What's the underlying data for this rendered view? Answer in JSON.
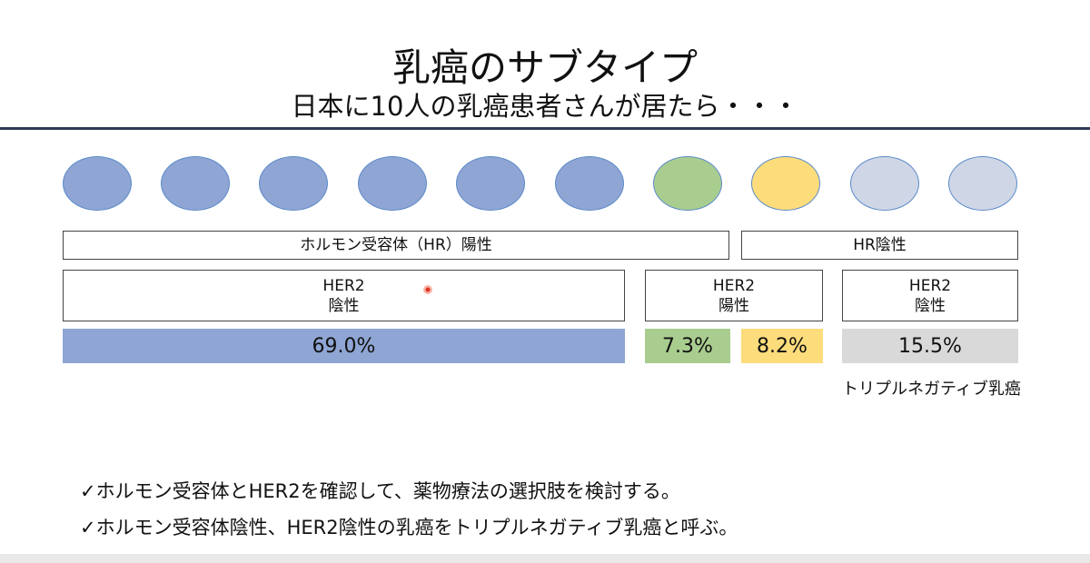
{
  "slide": {
    "title": "乳癌のサブタイプ",
    "subtitle": "日本に10人の乳癌患者さんが居たら・・・"
  },
  "people": [
    {
      "group": "hr-pos-her2-neg",
      "color": "#8fa5d4"
    },
    {
      "group": "hr-pos-her2-neg",
      "color": "#8fa5d4"
    },
    {
      "group": "hr-pos-her2-neg",
      "color": "#8fa5d4"
    },
    {
      "group": "hr-pos-her2-neg",
      "color": "#8fa5d4"
    },
    {
      "group": "hr-pos-her2-neg",
      "color": "#8fa5d4"
    },
    {
      "group": "hr-pos-her2-neg",
      "color": "#8fa5d4"
    },
    {
      "group": "hr-pos-her2-pos",
      "color": "#a9cd8f"
    },
    {
      "group": "hr-neg-her2-pos",
      "color": "#fddc7c"
    },
    {
      "group": "triple-negative",
      "color": "#cfd6e6"
    },
    {
      "group": "triple-negative",
      "color": "#cfd6e6"
    }
  ],
  "groups": {
    "hr_positive": "ホルモン受容体（HR）陽性",
    "hr_negative": "HR陰性"
  },
  "her2": {
    "negative_1": {
      "line1": "HER2",
      "line2": "陰性"
    },
    "positive": {
      "line1": "HER2",
      "line2": "陽性"
    },
    "negative_2": {
      "line1": "HER2",
      "line2": "陰性"
    }
  },
  "chart_data": {
    "type": "bar",
    "categories": [
      "HR陽性・HER2陰性",
      "HR陽性・HER2陽性",
      "HR陰性・HER2陽性",
      "HR陰性・HER2陰性"
    ],
    "values": [
      69.0,
      7.3,
      8.2,
      15.5
    ],
    "labels": [
      "69.0%",
      "7.3%",
      "8.2%",
      "15.5%"
    ],
    "colors": [
      "#8fa5d4",
      "#a9cd8f",
      "#fddc7c",
      "#d9d9d9"
    ]
  },
  "triple_negative_label": "トリプルネガティブ乳癌",
  "bullets": [
    "✓ホルモン受容体とHER2を確認して、薬物療法の選択肢を検討する。",
    "✓ホルモン受容体陰性、HER2陰性の乳癌をトリプルネガティブ乳癌と呼ぶ。"
  ]
}
